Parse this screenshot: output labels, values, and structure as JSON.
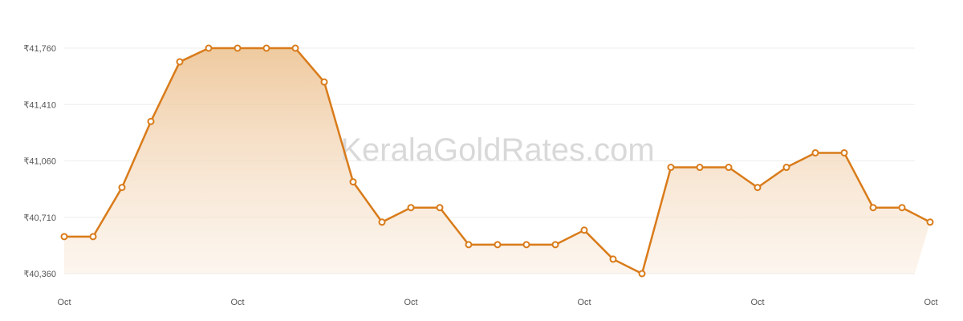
{
  "watermark": "KeralaGoldRates.com",
  "chart_data": {
    "type": "area",
    "title": "",
    "xlabel": "",
    "ylabel": "",
    "ylim": [
      40360,
      41760
    ],
    "yticks": [
      40360,
      40710,
      41060,
      41410,
      41760
    ],
    "ytick_labels": [
      "₹40,360",
      "₹40,710",
      "₹41,060",
      "₹41,410",
      "₹41,760"
    ],
    "xtick_labels": [
      "Oct",
      "Oct",
      "Oct",
      "Oct",
      "Oct",
      "Oct",
      "Oct"
    ],
    "grid": true,
    "colors": {
      "line": "#d97b1a",
      "fill_top": "#f0c898",
      "point_fill": "#ffffff",
      "grid": "#eeeeee"
    },
    "series": [
      {
        "values": [
          40590,
          40590,
          40895,
          41305,
          41675,
          41760,
          41760,
          41760,
          41760,
          41550,
          40930,
          40680,
          40770,
          40770,
          40540,
          40540,
          40540,
          40540,
          40630,
          40450,
          40360,
          41020,
          41020,
          41020,
          40895,
          41020,
          41110,
          41110,
          40770,
          40770,
          40680
        ]
      }
    ]
  }
}
